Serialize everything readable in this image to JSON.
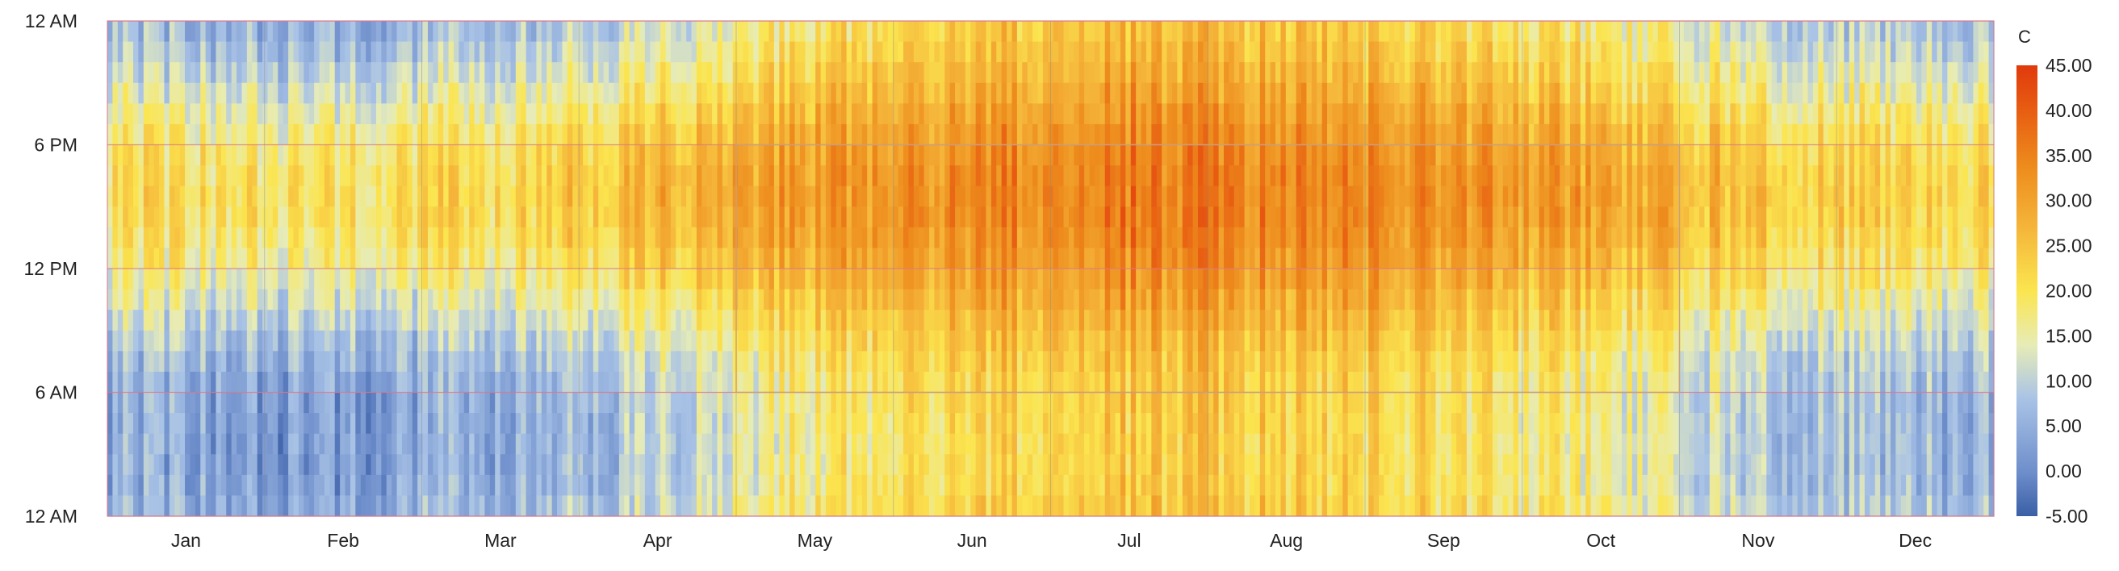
{
  "chart_data": {
    "type": "heatmap",
    "title": "",
    "xlabel": "",
    "ylabel": "",
    "x_tick_labels": [
      "Jan",
      "Feb",
      "Mar",
      "Apr",
      "May",
      "Jun",
      "Jul",
      "Aug",
      "Sep",
      "Oct",
      "Nov",
      "Dec"
    ],
    "y_tick_labels": [
      "12 AM",
      "6 PM",
      "12 PM",
      "6 AM",
      "12 AM"
    ],
    "y_axis_hours_top_to_bottom": [
      24,
      18,
      12,
      6,
      0
    ],
    "colorbar": {
      "title": "C",
      "min": -5,
      "max": 45,
      "tick_labels": [
        "45.00",
        "40.00",
        "35.00",
        "30.00",
        "25.00",
        "20.00",
        "15.00",
        "10.00",
        "5.00",
        "0.00",
        "-5.00"
      ],
      "stops": [
        {
          "value": -5,
          "color": "#3a5fa6"
        },
        {
          "value": 0,
          "color": "#6f8fcc"
        },
        {
          "value": 8,
          "color": "#a9c3e6"
        },
        {
          "value": 14,
          "color": "#e7ecb6"
        },
        {
          "value": 20,
          "color": "#fbe54f"
        },
        {
          "value": 27,
          "color": "#f5b53a"
        },
        {
          "value": 34,
          "color": "#ed8a1c"
        },
        {
          "value": 40,
          "color": "#e85d12"
        },
        {
          "value": 45,
          "color": "#e03a0c"
        }
      ]
    },
    "grid": true,
    "monthly_temperature_C": {
      "months": [
        "Jan",
        "Feb",
        "Mar",
        "Apr",
        "May",
        "Jun",
        "Jul",
        "Aug",
        "Sep",
        "Oct",
        "Nov",
        "Dec"
      ],
      "night_min": [
        3,
        2,
        5,
        9,
        18,
        22,
        24,
        23,
        20,
        16,
        9,
        6
      ],
      "day_max": [
        20,
        20,
        22,
        27,
        32,
        34,
        36,
        35,
        33,
        30,
        25,
        22
      ]
    }
  },
  "colors": {
    "frame": "#8a8a8a",
    "highlight_box": "#c9a07a",
    "highlight_gridline": "#d9788a"
  }
}
